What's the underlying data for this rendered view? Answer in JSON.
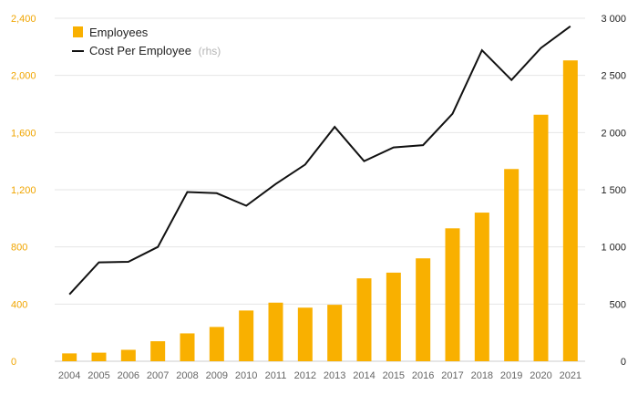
{
  "chart_data": {
    "type": "bar",
    "categories": [
      "2004",
      "2005",
      "2006",
      "2007",
      "2008",
      "2009",
      "2010",
      "2011",
      "2012",
      "2013",
      "2014",
      "2015",
      "2016",
      "2017",
      "2018",
      "2019",
      "2020",
      "2021"
    ],
    "series": [
      {
        "name": "Employees",
        "type": "bar",
        "axis": "left",
        "color": "#f9b000",
        "values": [
          55,
          60,
          80,
          140,
          195,
          240,
          355,
          410,
          375,
          395,
          580,
          620,
          720,
          930,
          1040,
          1345,
          1725,
          2105
        ]
      },
      {
        "name": "Cost Per Employee",
        "name_suffix": "(rhs)",
        "type": "line",
        "axis": "right",
        "color": "#111111",
        "values": [
          585,
          865,
          870,
          1000,
          1480,
          1470,
          1360,
          1550,
          1720,
          2050,
          1750,
          1870,
          1890,
          2165,
          2720,
          2460,
          2740,
          2930
        ]
      }
    ],
    "y_left": {
      "ylim": [
        0,
        2400
      ],
      "ticks": [
        0,
        400,
        800,
        1200,
        1600,
        2000,
        2400
      ],
      "tick_labels": [
        "0",
        "400",
        "800",
        "1,200",
        "1,600",
        "2,000",
        "2,400"
      ],
      "color": "#f0a500"
    },
    "y_right": {
      "ylim": [
        0,
        3000
      ],
      "ticks": [
        0,
        500,
        1000,
        1500,
        2000,
        2500,
        3000
      ],
      "tick_labels": [
        "0",
        "500",
        "1 000",
        "1 500",
        "2 000",
        "2 500",
        "3 000"
      ],
      "color": "#222222"
    },
    "grid": true,
    "legend_position": "top-left",
    "title": "",
    "xlabel": "",
    "ylabel": ""
  }
}
